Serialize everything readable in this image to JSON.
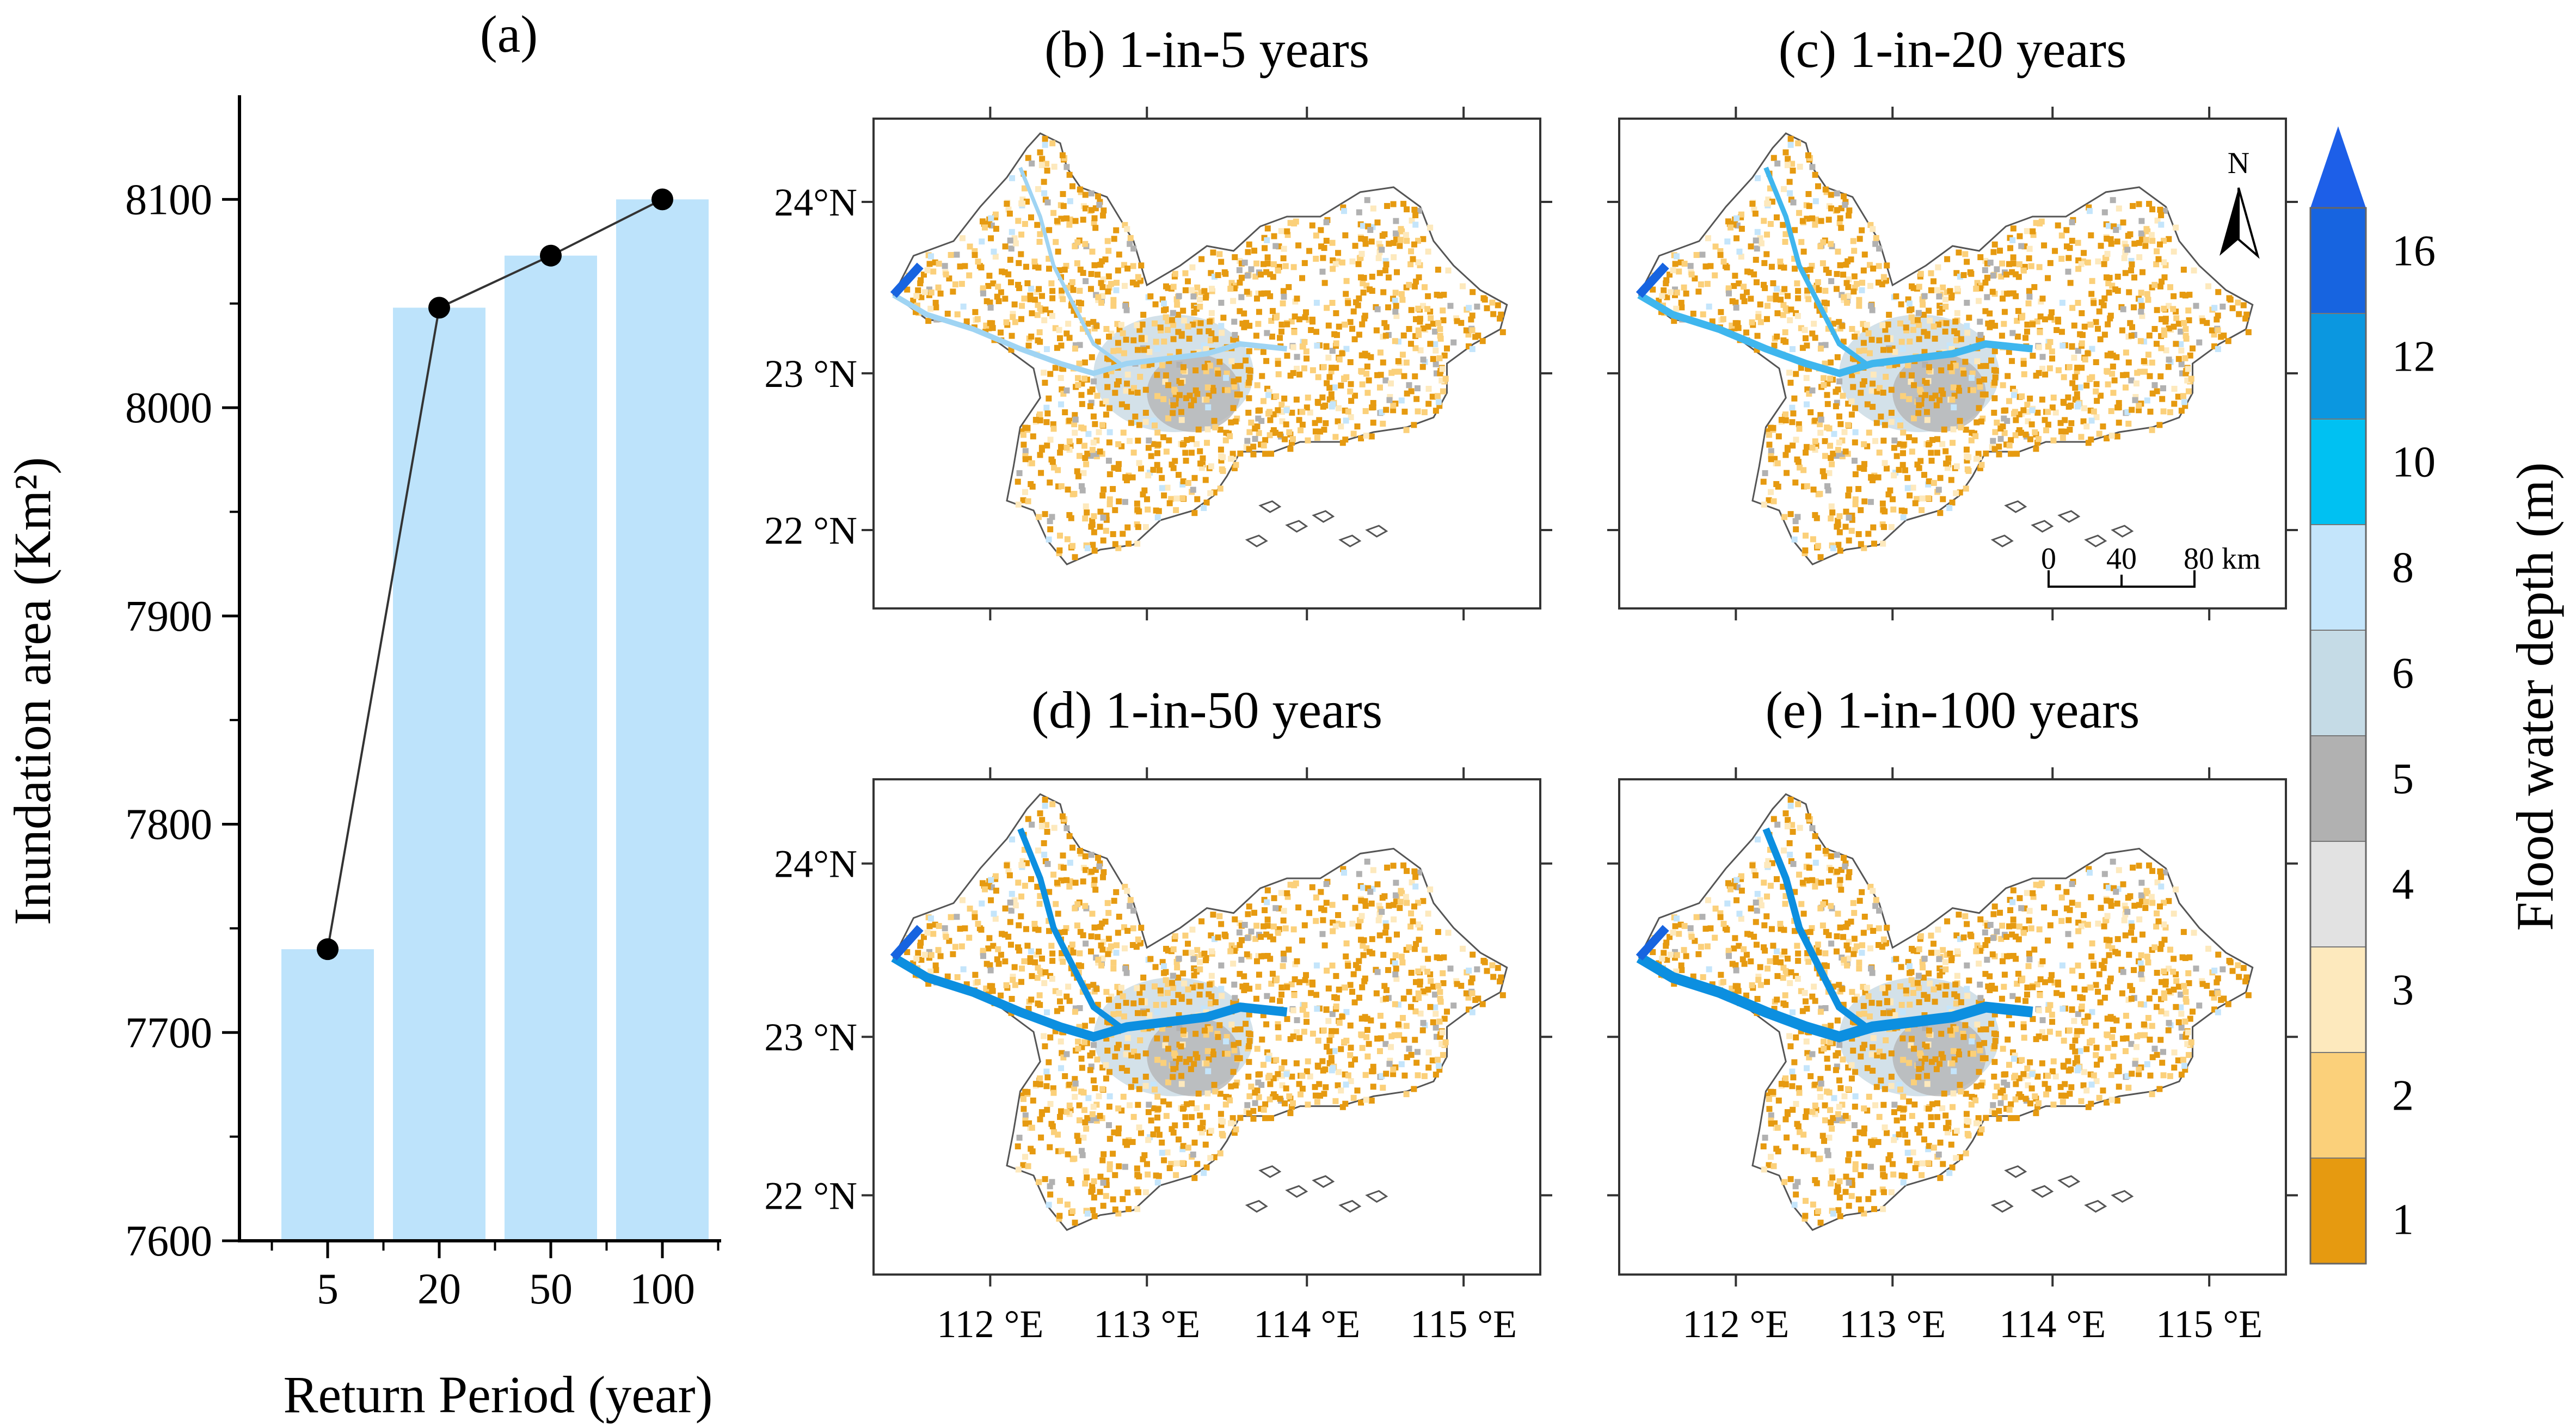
{
  "chart_data": [
    {
      "type": "bar",
      "panel_label": "(a)",
      "xlabel": "Return Period (year)",
      "ylabel": "Inundation area (Km²)",
      "categories": [
        "5",
        "20",
        "50",
        "100"
      ],
      "values": [
        7740,
        8048,
        8073,
        8100
      ],
      "line_values": [
        7740,
        8048,
        8073,
        8100
      ],
      "ylim": [
        7600,
        8150
      ],
      "yticks": [
        7600,
        7700,
        7800,
        7900,
        8000,
        8100
      ],
      "ytick_labels": [
        "7600",
        "7700",
        "7800",
        "7900",
        "8000",
        "8100"
      ],
      "bar_color": "#bde3fb",
      "line_color": "#333333",
      "marker_color": "#000000"
    },
    {
      "type": "heatmap",
      "subtype": "map",
      "panels": [
        {
          "id": "b",
          "title": "(b) 1-in-5 years",
          "intensity": 0.0
        },
        {
          "id": "c",
          "title": "(c) 1-in-20 years",
          "intensity": 0.35
        },
        {
          "id": "d",
          "title": "(d) 1-in-50 years",
          "intensity": 0.7
        },
        {
          "id": "e",
          "title": "(e) 1-in-100 years",
          "intensity": 1.0
        }
      ],
      "lat_labels": [
        "24°N",
        "23 °N",
        "22 °N"
      ],
      "lat_values": [
        24,
        23,
        22
      ],
      "lon_labels": [
        "112 °E",
        "113 °E",
        "114 °E",
        "115 °E"
      ],
      "lon_values": [
        112,
        113,
        114,
        115
      ],
      "north_label": "N",
      "scalebar_labels": [
        "0",
        "40",
        "80 km"
      ],
      "colorbar": {
        "label": "Flood water depth (m)",
        "tick_labels": [
          "1",
          "2",
          "3",
          "4",
          "5",
          "6",
          "8",
          "10",
          "12",
          "16"
        ],
        "colors": [
          "#e69a10",
          "#fbd07a",
          "#fde9bd",
          "#e2e2e2",
          "#b1b1b1",
          "#c5dbe6",
          "#c4e5fb",
          "#00c1f2",
          "#0b97e0",
          "#1764e0"
        ],
        "extend_color": "#1d5fe8"
      }
    }
  ]
}
